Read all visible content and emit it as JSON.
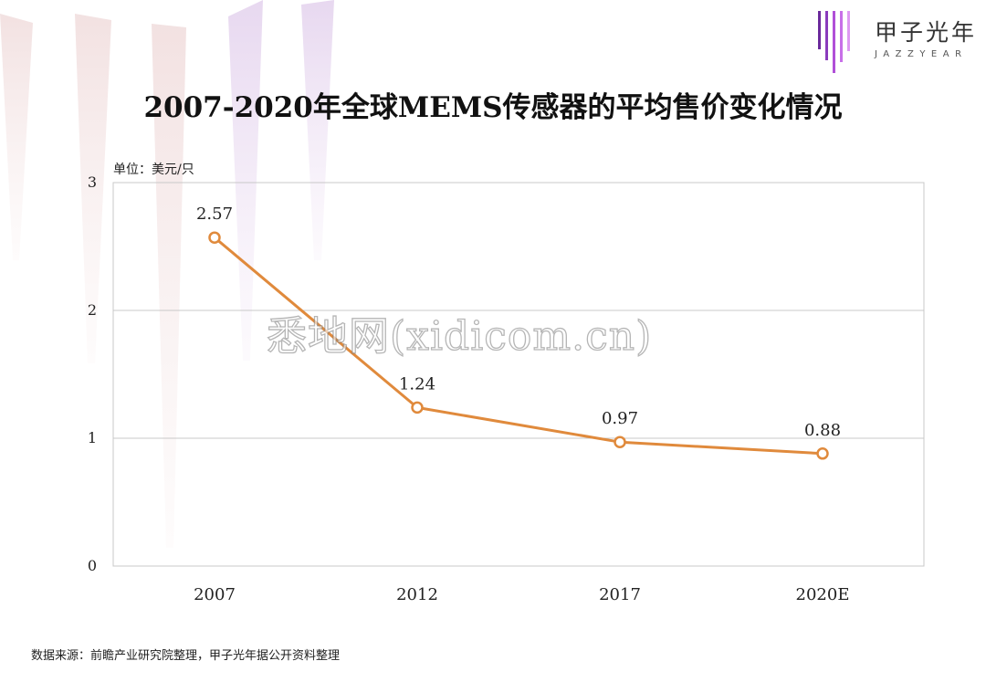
{
  "logo": {
    "name_cn": "甲子光年",
    "name_en": "JAZZYEAR",
    "bar_colors": [
      "#6a2a9c",
      "#8a3bbd",
      "#b04fd8",
      "#c870e8",
      "#de9af2"
    ]
  },
  "title": "2007-2020年全球MEMS传感器的平均售价变化情况",
  "unit_label": "单位：美元/只",
  "watermark": "悉地网(xidicom.cn)",
  "source": "数据来源：前瞻产业研究院整理，甲子光年据公开资料整理",
  "chart_data": {
    "type": "line",
    "title": "2007-2020年全球MEMS传感器的平均售价变化情况",
    "categories": [
      "2007",
      "2012",
      "2017",
      "2020E"
    ],
    "values": [
      2.57,
      1.24,
      0.97,
      0.88
    ],
    "data_labels": [
      "2.57",
      "1.24",
      "0.97",
      "0.88"
    ],
    "ylabel": "单位：美元/只",
    "ylim": [
      0,
      3
    ],
    "yticks": [
      "0",
      "1",
      "2",
      "3"
    ],
    "grid": true,
    "line_color": "#e08a3c"
  }
}
